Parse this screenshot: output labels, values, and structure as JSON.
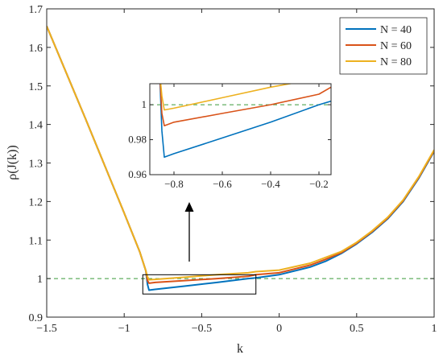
{
  "chart_data": {
    "type": "line",
    "xlabel": "k",
    "ylabel": "ρ(J(k))",
    "xlim": [
      -1.5,
      1
    ],
    "ylim": [
      0.9,
      1.7
    ],
    "xticks": [
      -1.5,
      -1,
      -0.5,
      0,
      0.5,
      1
    ],
    "xtick_labels": [
      "−1.5",
      "−1",
      "−0.5",
      "0",
      "0.5",
      "1"
    ],
    "yticks": [
      0.9,
      1.0,
      1.1,
      1.2,
      1.3,
      1.4,
      1.5,
      1.6,
      1.7
    ],
    "ytick_labels": [
      "0.9",
      "1",
      "1.1",
      "1.2",
      "1.3",
      "1.4",
      "1.5",
      "1.6",
      "1.7"
    ],
    "grid": false,
    "legend_position": "top-right",
    "reference_line": {
      "y": 1.0,
      "style": "dashed",
      "color": "#3a9a3a"
    },
    "series": [
      {
        "name": "N = 40",
        "color": "#0072BD",
        "x": [
          -1.5,
          -1.25,
          -1.0,
          -0.9,
          -0.86,
          -0.85,
          -0.84,
          -0.8,
          -0.6,
          -0.4,
          -0.2,
          -0.15,
          0.0,
          0.2,
          0.3,
          0.4,
          0.5,
          0.6,
          0.7,
          0.8,
          0.9,
          1.0
        ],
        "y": [
          1.655,
          1.415,
          1.17,
          1.07,
          1.02,
          0.985,
          0.97,
          0.972,
          0.981,
          0.99,
          1.0,
          1.002,
          1.01,
          1.03,
          1.045,
          1.065,
          1.09,
          1.12,
          1.155,
          1.2,
          1.26,
          1.33
        ]
      },
      {
        "name": "N = 60",
        "color": "#D95319",
        "x": [
          -1.5,
          -1.25,
          -1.0,
          -0.9,
          -0.86,
          -0.85,
          -0.84,
          -0.8,
          -0.6,
          -0.4,
          -0.2,
          -0.15,
          0.0,
          0.2,
          0.3,
          0.4,
          0.5,
          0.6,
          0.7,
          0.8,
          0.9,
          1.0
        ],
        "y": [
          1.655,
          1.415,
          1.17,
          1.07,
          1.02,
          0.995,
          0.988,
          0.99,
          0.995,
          1.0,
          1.006,
          1.01,
          1.015,
          1.035,
          1.05,
          1.067,
          1.092,
          1.122,
          1.157,
          1.202,
          1.262,
          1.332
        ]
      },
      {
        "name": "N = 80",
        "color": "#EDB120",
        "x": [
          -1.5,
          -1.25,
          -1.0,
          -0.9,
          -0.86,
          -0.85,
          -0.84,
          -0.8,
          -0.6,
          -0.4,
          -0.2,
          -0.15,
          0.0,
          0.2,
          0.3,
          0.4,
          0.5,
          0.6,
          0.7,
          0.8,
          0.9,
          1.0
        ],
        "y": [
          1.655,
          1.415,
          1.17,
          1.07,
          1.02,
          1.005,
          0.997,
          0.998,
          1.004,
          1.01,
          1.015,
          1.018,
          1.022,
          1.04,
          1.055,
          1.07,
          1.094,
          1.124,
          1.159,
          1.204,
          1.264,
          1.334
        ]
      }
    ],
    "zoom_box": {
      "xlim": [
        -0.88,
        -0.15
      ],
      "ylim": [
        0.96,
        1.01
      ]
    },
    "inset": {
      "xlim": [
        -0.9,
        -0.15
      ],
      "ylim": [
        0.96,
        1.012
      ],
      "xticks": [
        -0.8,
        -0.6,
        -0.4,
        -0.2
      ],
      "xtick_labels": [
        "−0.8",
        "−0.6",
        "−0.4",
        "−0.2"
      ],
      "yticks": [
        0.96,
        0.98,
        1.0
      ],
      "ytick_labels": [
        "0.96",
        "0.98",
        "1"
      ]
    }
  }
}
